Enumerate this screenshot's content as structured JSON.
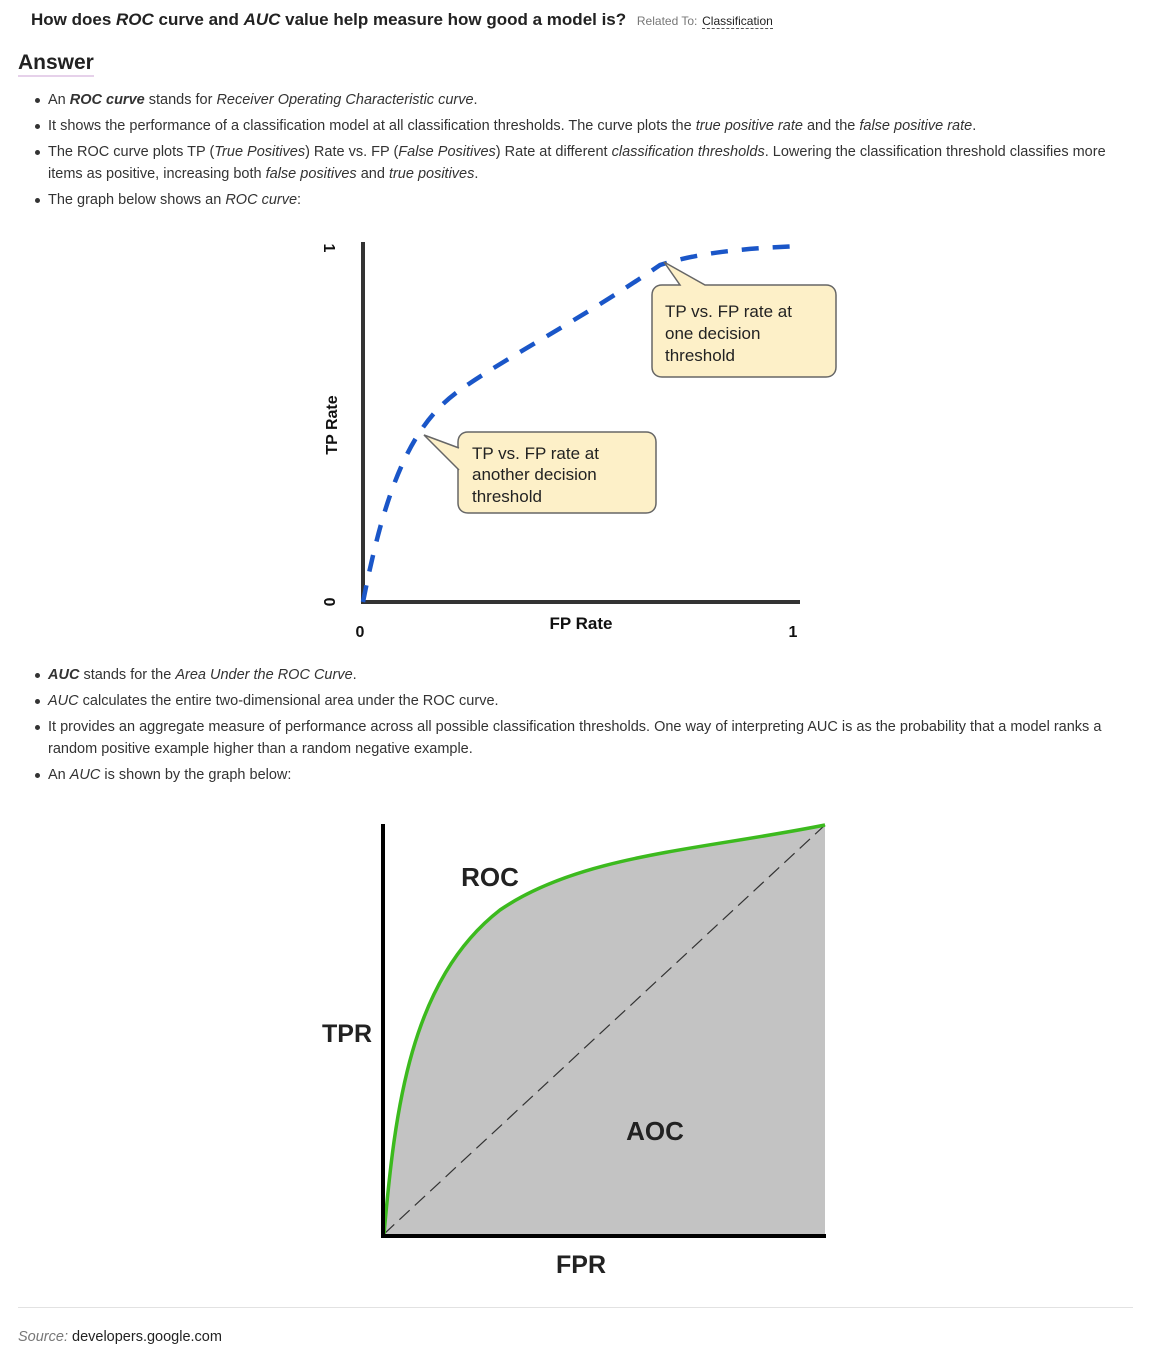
{
  "question": {
    "prefix": "How does ",
    "term1": "ROC",
    "middle": " curve and ",
    "term2": "AUC",
    "suffix": " value help measure how good a model is?",
    "related_label": "Related To:",
    "related_link": "Classification"
  },
  "answer_heading": "Answer",
  "bullets1": {
    "b1": {
      "t1": "An ",
      "t2": "ROC curve",
      "t3": " stands for ",
      "t4": "Receiver Operating Characteristic curve",
      "t5": "."
    },
    "b2": {
      "t1": "It shows the performance of a classification model at all classification thresholds. The curve plots the ",
      "t2": "true positive rate",
      "t3": " and the ",
      "t4": "false positive rate",
      "t5": "."
    },
    "b3": {
      "t1": "The ROC curve plots TP (",
      "t2": "True Positives",
      "t3": ") Rate vs. FP (",
      "t4": "False Positives",
      "t5": ") Rate at different ",
      "t6": "classification thresholds",
      "t7": ". Lowering the classification threshold classifies more items as positive, increasing both ",
      "t8": "false positives",
      "t9": " and ",
      "t10": "true positives",
      "t11": "."
    },
    "b4": {
      "t1": "The graph below shows an ",
      "t2": "ROC curve",
      "t3": ":"
    }
  },
  "figure1": {
    "y_label": "TP Rate",
    "x_label": "FP Rate",
    "y_tick_top": "1",
    "y_tick_bottom": "0",
    "x_tick_left": "0",
    "x_tick_right": "1",
    "callout1_lines": [
      "TP vs. FP rate at",
      "one decision",
      "threshold"
    ],
    "callout2_lines": [
      "TP vs. FP rate at",
      "another decision",
      "threshold"
    ],
    "colors": {
      "curve": "#1a56c8",
      "callout_fill": "#fdf0c8",
      "axis": "#333333"
    }
  },
  "bullets2": {
    "b1": {
      "t1": "AUC",
      "t2": " stands for the ",
      "t3": "Area Under the ROC Curve",
      "t4": "."
    },
    "b2": {
      "t1": "AUC",
      "t2": " calculates the entire two-dimensional area under the ROC curve."
    },
    "b3": {
      "t1": "It provides an aggregate measure of performance across all possible classification thresholds. One way of interpreting AUC is as the probability that a model ranks a random positive example higher than a random negative example."
    },
    "b4": {
      "t1": "An ",
      "t2": "AUC",
      "t3": " is shown by the graph below:"
    }
  },
  "figure2": {
    "curve_label": "ROC",
    "area_label": "AOC",
    "y_label": "TPR",
    "x_label": "FPR",
    "colors": {
      "curve": "#3cba1e",
      "area": "#c3c3c3",
      "axis": "#000000"
    }
  },
  "source": {
    "label": "Source:",
    "value": "developers.google.com"
  }
}
